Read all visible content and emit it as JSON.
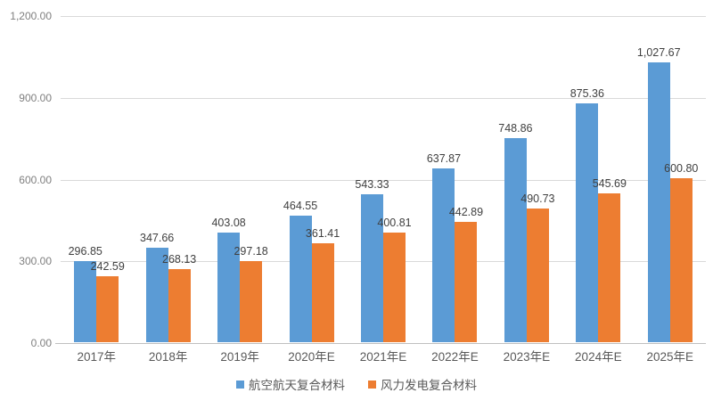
{
  "chart_data": {
    "type": "bar",
    "title": "",
    "categories": [
      "2017年",
      "2018年",
      "2019年",
      "2020年E",
      "2021年E",
      "2022年E",
      "2023年E",
      "2024年E",
      "2025年E"
    ],
    "series": [
      {
        "name": "航空航天复合材料",
        "color": "#5B9BD5",
        "values": [
          296.85,
          347.66,
          403.08,
          464.55,
          543.33,
          637.87,
          748.86,
          875.36,
          1027.67
        ],
        "labels": [
          "296.85",
          "347.66",
          "403.08",
          "464.55",
          "543.33",
          "637.87",
          "748.86",
          "875.36",
          "1,027.67"
        ]
      },
      {
        "name": "风力发电复合材料",
        "color": "#ED7D31",
        "values": [
          242.59,
          268.13,
          297.18,
          361.41,
          400.81,
          442.89,
          490.73,
          545.69,
          600.8
        ],
        "labels": [
          "242.59",
          "268.13",
          "297.18",
          "361.41",
          "400.81",
          "442.89",
          "490.73",
          "545.69",
          "600.80"
        ]
      }
    ],
    "xlabel": "",
    "ylabel": "",
    "ylim": [
      0,
      1200
    ],
    "y_tick_values": [
      0,
      300,
      600,
      900,
      1200
    ],
    "y_tick_labels": [
      "0.00",
      "300.00",
      "600.00",
      "900.00",
      "1,200.00"
    ],
    "grid": true,
    "legend_position": "bottom",
    "colors": {
      "gridline": "#D9D9D9",
      "axis_line": "#BFBFBF",
      "tick_label": "#7F7F7F",
      "data_label": "#404040",
      "category_label": "#595959",
      "legend_text": "#595959",
      "background": "#FFFFFF"
    }
  }
}
